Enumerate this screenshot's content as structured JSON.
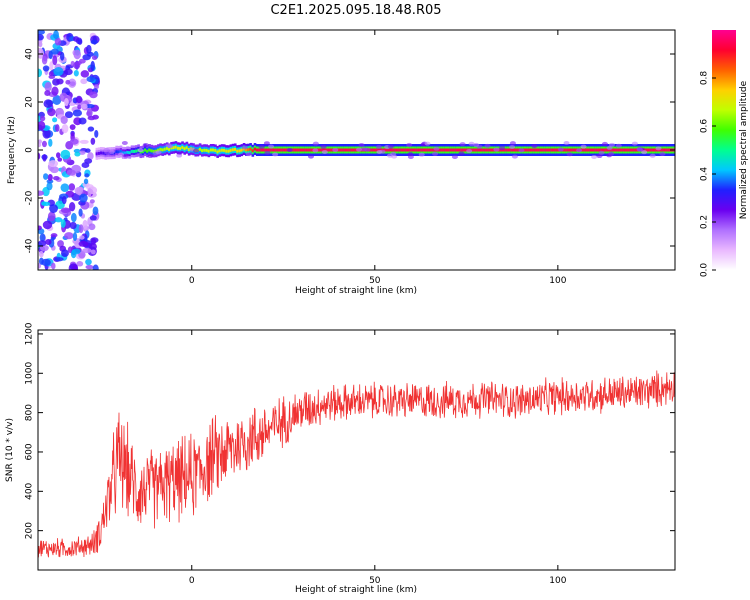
{
  "page_title": "C2E1.2025.095.18.48.R05",
  "chart_data": [
    {
      "type": "heatmap",
      "title": "C2E1.2025.095.18.48.R05",
      "xlabel": "Height of straight line (km)",
      "ylabel": "Frequency (Hz)",
      "xlim": [
        -42,
        132
      ],
      "ylim": [
        -50,
        50
      ],
      "xticks": [
        0,
        50,
        100
      ],
      "yticks": [
        -40,
        -20,
        0,
        20,
        40
      ],
      "grid": false,
      "colorbar": {
        "label": "Normalized spectral amplitude",
        "range": [
          0,
          1
        ],
        "ticks": [
          0.0,
          0.2,
          0.4,
          0.6,
          0.8
        ],
        "tick_labels": [
          "0.0",
          "0.2",
          "0.4",
          "0.6",
          "0.8"
        ],
        "colormap": [
          "#ffffff",
          "#e9b8ff",
          "#b070ff",
          "#6a00f0",
          "#2020ff",
          "#00c8ff",
          "#00ff90",
          "#40ff00",
          "#c0ff00",
          "#ffd000",
          "#ff6000",
          "#ff0030",
          "#ff0090"
        ]
      },
      "noise_region": {
        "x_range": [
          -42,
          -26
        ],
        "y_range": [
          -50,
          50
        ],
        "typical_amplitude": 0.25
      },
      "tone_track": [
        {
          "x": -26,
          "y": -1.5,
          "amplitude": 0.25
        },
        {
          "x": -20,
          "y": -1.0,
          "amplitude": 0.35
        },
        {
          "x": -14,
          "y": -0.5,
          "amplitude": 0.55
        },
        {
          "x": -8,
          "y": 0.0,
          "amplitude": 0.65
        },
        {
          "x": -4,
          "y": 1.0,
          "amplitude": 0.7
        },
        {
          "x": 2,
          "y": 0.0,
          "amplitude": 0.65
        },
        {
          "x": 8,
          "y": -0.5,
          "amplitude": 0.7
        },
        {
          "x": 14,
          "y": 0.0,
          "amplitude": 0.75
        },
        {
          "x": 18,
          "y": 0.0,
          "amplitude": 0.95
        },
        {
          "x": 132,
          "y": 0.0,
          "amplitude": 0.95
        }
      ]
    },
    {
      "type": "line",
      "xlabel": "Height of straight line (km)",
      "ylabel": "SNR (10 * v/v)",
      "xlim": [
        -42,
        132
      ],
      "ylim": [
        0,
        1220
      ],
      "xticks": [
        0,
        50,
        100
      ],
      "yticks": [
        200,
        400,
        600,
        800,
        1000,
        1200
      ],
      "grid": false,
      "color": "#f03232",
      "envelope": {
        "x": [
          -42,
          -33,
          -27,
          -25,
          -22,
          -20,
          -18,
          -15,
          -10,
          -5,
          0,
          5,
          10,
          15,
          20,
          25,
          30,
          35,
          40,
          50,
          60,
          70,
          80,
          90,
          100,
          110,
          120,
          125,
          130,
          132
        ],
        "mean": [
          110,
          110,
          130,
          200,
          420,
          560,
          520,
          400,
          420,
          450,
          470,
          560,
          610,
          660,
          700,
          760,
          810,
          840,
          850,
          860,
          860,
          860,
          870,
          860,
          880,
          890,
          900,
          910,
          930,
          940
        ],
        "spread": [
          60,
          60,
          70,
          120,
          240,
          320,
          280,
          230,
          240,
          240,
          260,
          250,
          220,
          210,
          180,
          150,
          130,
          120,
          110,
          110,
          110,
          110,
          110,
          110,
          110,
          110,
          110,
          110,
          110,
          110
        ]
      }
    }
  ]
}
